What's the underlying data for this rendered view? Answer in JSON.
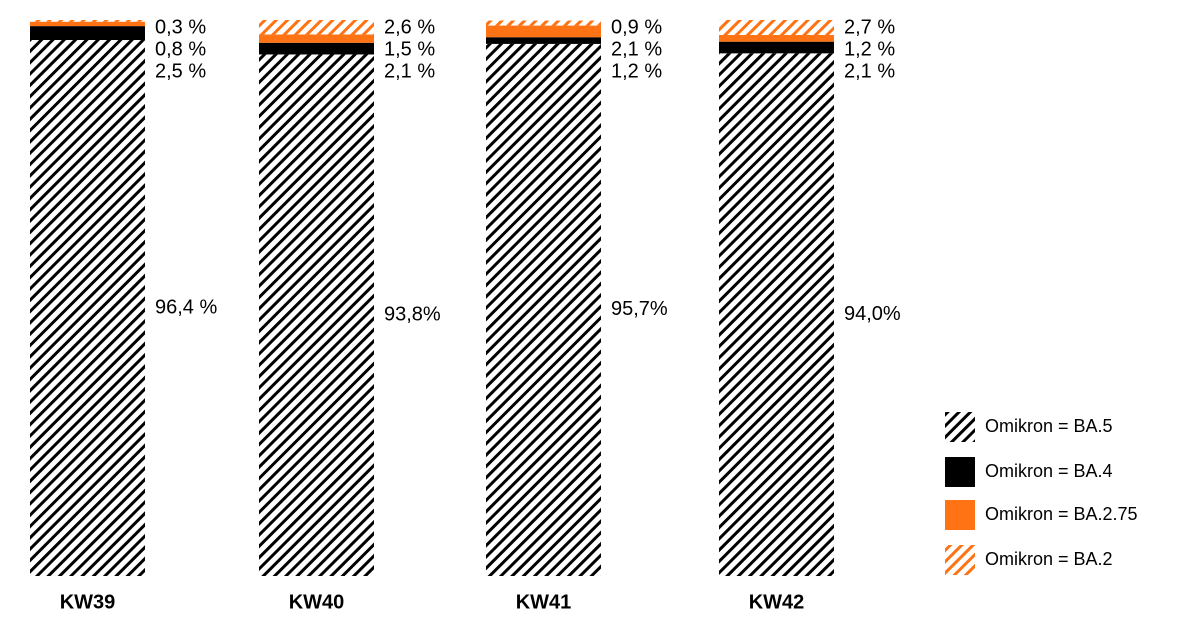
{
  "chart_data": {
    "type": "bar",
    "stacked": true,
    "categories": [
      "KW39",
      "KW40",
      "KW41",
      "KW42"
    ],
    "ylim": [
      0,
      100
    ],
    "series": [
      {
        "name": "Omikron = BA.5",
        "color": "#000000",
        "pattern": "hatch",
        "values": [
          96.4,
          93.8,
          95.7,
          94.0
        ],
        "value_labels": [
          "96,4 %",
          "93,8%",
          "95,7%",
          "94,0%"
        ]
      },
      {
        "name": "Omikron = BA.4",
        "color": "#000000",
        "pattern": "solid",
        "values": [
          2.5,
          2.1,
          1.2,
          2.1
        ],
        "value_labels": [
          "2,5 %",
          "2,1 %",
          "1,2 %",
          "2,1 %"
        ]
      },
      {
        "name": "Omikron = BA.2.75",
        "color": "#ff7314",
        "pattern": "solid",
        "values": [
          0.8,
          1.5,
          2.1,
          1.2
        ],
        "value_labels": [
          "0,8 %",
          "1,5 %",
          "2,1 %",
          "1,2 %"
        ]
      },
      {
        "name": "Omikron = BA.2",
        "color": "#ff7314",
        "pattern": "hatch",
        "values": [
          0.3,
          2.6,
          0.9,
          2.7
        ],
        "value_labels": [
          "0,3 %",
          "2,6 %",
          "0,9 %",
          "2,7 %"
        ]
      }
    ]
  }
}
